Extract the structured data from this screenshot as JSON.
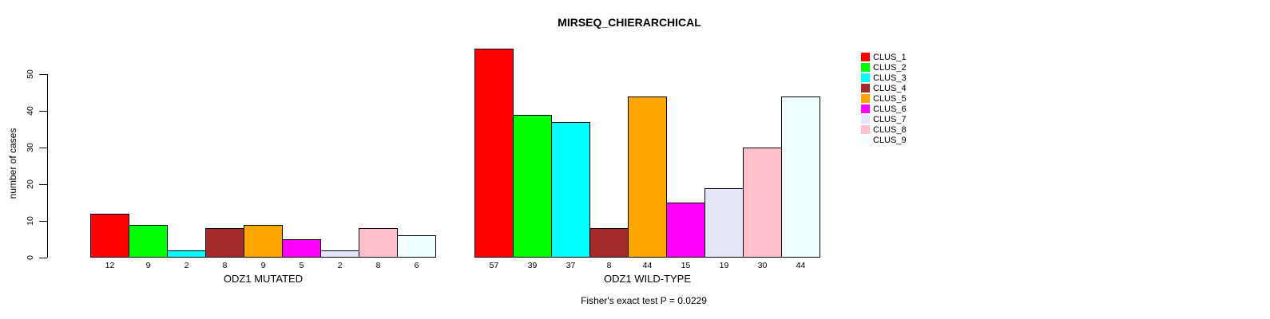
{
  "title": "MIRSEQ_CHIERARCHICAL",
  "chart_data": {
    "type": "bar",
    "title": "MIRSEQ_CHIERARCHICAL",
    "ylabel": "number of cases",
    "xlabel": "",
    "ylim": [
      0,
      57
    ],
    "yticks": [
      0,
      10,
      20,
      30,
      40,
      50
    ],
    "grid": false,
    "legend_position": "right",
    "categories": [
      "CLUS_1",
      "CLUS_2",
      "CLUS_3",
      "CLUS_4",
      "CLUS_5",
      "CLUS_6",
      "CLUS_7",
      "CLUS_8",
      "CLUS_9"
    ],
    "colors": [
      "#FF0000",
      "#00FF00",
      "#00FFFF",
      "#A52A2A",
      "#FFA500",
      "#FF00FF",
      "#E6E6FA",
      "#FFC0CB",
      "#F0FFFF"
    ],
    "groups": [
      {
        "label": "ODZ1 MUTATED",
        "values": [
          12,
          9,
          2,
          8,
          9,
          5,
          2,
          8,
          6
        ]
      },
      {
        "label": "ODZ1 WILD-TYPE",
        "values": [
          57,
          39,
          37,
          8,
          44,
          15,
          19,
          30,
          44
        ]
      }
    ],
    "annotation": "Fisher's exact test P = 0.0229"
  }
}
